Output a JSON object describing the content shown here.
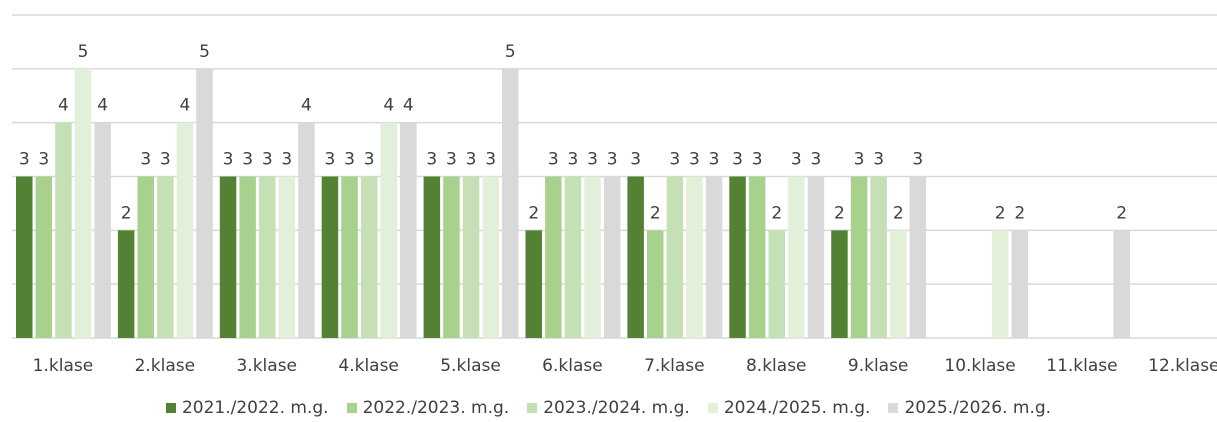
{
  "chart_data": {
    "type": "bar",
    "categories": [
      "1.klase",
      "2.klase",
      "3.klase",
      "4.klase",
      "5.klase",
      "6.klase",
      "7.klase",
      "8.klase",
      "9.klase",
      "10.klase",
      "11.klase",
      "12.klase"
    ],
    "series": [
      {
        "name": "2021./2022. m.g.",
        "color": "#548235",
        "values": [
          3,
          2,
          3,
          3,
          3,
          2,
          3,
          3,
          2,
          null,
          null,
          null
        ]
      },
      {
        "name": "2022./2023. m.g.",
        "color": "#A9D18E",
        "values": [
          3,
          3,
          3,
          3,
          3,
          3,
          2,
          3,
          3,
          null,
          null,
          null
        ]
      },
      {
        "name": "2023./2024. m.g.",
        "color": "#C5E0B4",
        "values": [
          4,
          3,
          3,
          3,
          3,
          3,
          3,
          2,
          3,
          null,
          null,
          null
        ]
      },
      {
        "name": "2024./2025. m.g.",
        "color": "#E2F0D9",
        "values": [
          5,
          4,
          3,
          4,
          3,
          3,
          3,
          3,
          2,
          2,
          null,
          null
        ]
      },
      {
        "name": "2025./2026. m.g.",
        "color": "#D9D9D9",
        "values": [
          4,
          5,
          4,
          4,
          5,
          3,
          3,
          3,
          3,
          2,
          2,
          null
        ]
      }
    ],
    "ylim": [
      0,
      6
    ],
    "grid": true,
    "legend_position": "bottom",
    "title": "",
    "xlabel": "",
    "ylabel": ""
  }
}
